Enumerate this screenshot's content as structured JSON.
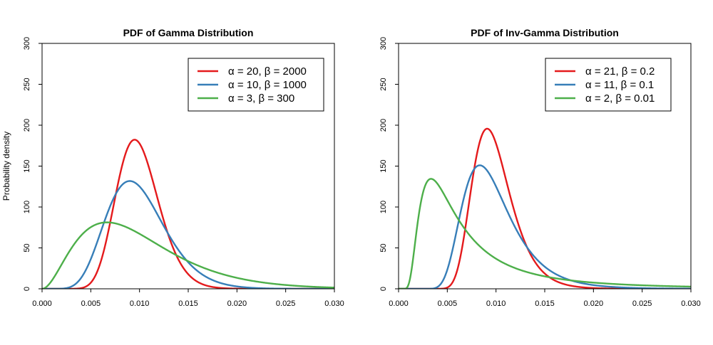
{
  "chart_data": [
    {
      "type": "line",
      "title": "PDF of Gamma Distribution",
      "xlabel": "",
      "ylabel": "Probability density",
      "xlim": [
        0,
        0.03
      ],
      "ylim": [
        0,
        300
      ],
      "x_ticks": [
        "0.000",
        "0.005",
        "0.010",
        "0.015",
        "0.020",
        "0.025",
        "0.030"
      ],
      "y_ticks": [
        "0",
        "50",
        "100",
        "150",
        "200",
        "250",
        "300"
      ],
      "legend_position": "top-right",
      "series": [
        {
          "name": "α =  20,  β =  2000",
          "color": "#e41a1c",
          "distribution": "gamma",
          "alpha": 20,
          "beta": 2000
        },
        {
          "name": "α =  10,  β =  1000",
          "color": "#377eb8",
          "distribution": "gamma",
          "alpha": 10,
          "beta": 1000
        },
        {
          "name": "α =  3,  β =  300",
          "color": "#4daf4a",
          "distribution": "gamma",
          "alpha": 3,
          "beta": 300
        }
      ]
    },
    {
      "type": "line",
      "title": "PDF of Inv-Gamma Distribution",
      "xlabel": "",
      "ylabel": "",
      "xlim": [
        0,
        0.03
      ],
      "ylim": [
        0,
        300
      ],
      "x_ticks": [
        "0.000",
        "0.005",
        "0.010",
        "0.015",
        "0.020",
        "0.025",
        "0.030"
      ],
      "y_ticks": [
        "0",
        "50",
        "100",
        "150",
        "200",
        "250",
        "300"
      ],
      "legend_position": "top-right",
      "series": [
        {
          "name": "α =  21,  β =  0.2",
          "color": "#e41a1c",
          "distribution": "inv-gamma",
          "alpha": 21,
          "beta": 0.2
        },
        {
          "name": "α =  11,  β =  0.1",
          "color": "#377eb8",
          "distribution": "inv-gamma",
          "alpha": 11,
          "beta": 0.1
        },
        {
          "name": "α =  2,  β =  0.01",
          "color": "#4daf4a",
          "distribution": "inv-gamma",
          "alpha": 2,
          "beta": 0.01
        }
      ]
    }
  ]
}
